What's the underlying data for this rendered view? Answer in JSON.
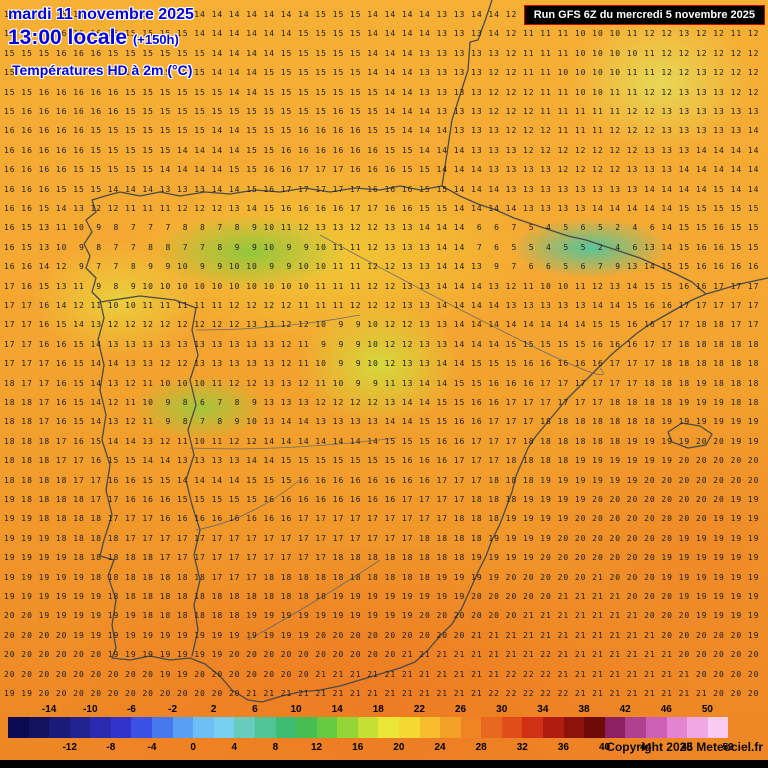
{
  "header": {
    "date_line": "mardi 11 novembre 2025",
    "time_line": "13:00 locale",
    "forecast_offset": "(+150h)",
    "variable_label": "Températures HD à 2m (°C)"
  },
  "run_info": {
    "label": "Run GFS 6Z du mercredi 5 novembre 2025"
  },
  "copyright": "Copyright 2025 Meteociel.fr",
  "colors": {
    "header_text": "#0000e0",
    "run_box_bg": "#000000",
    "run_box_border": "#d00000",
    "base_orange": "#f5a832",
    "warm_orange": "#ee8526",
    "cool_green": "#8ac83c",
    "cold_cyan": "#50c69e"
  },
  "scale": {
    "unit": "°C",
    "min": -18,
    "max": 52,
    "step": 2,
    "top_values": [
      -14,
      -10,
      -6,
      -2,
      2,
      6,
      10,
      14,
      18,
      22,
      26,
      30,
      34,
      38,
      42,
      46,
      50
    ],
    "bottom_values": [
      -12,
      -8,
      -4,
      0,
      4,
      8,
      12,
      16,
      20,
      24,
      28,
      32,
      36,
      40,
      44,
      48,
      52
    ],
    "colors": [
      "#0a0a50",
      "#12125e",
      "#1a1a77",
      "#222290",
      "#2a2aae",
      "#3232cc",
      "#3c50e6",
      "#4878ee",
      "#58a0f2",
      "#6cc0f6",
      "#78d0f0",
      "#68ccbc",
      "#50c494",
      "#3ebc72",
      "#46be52",
      "#66ca40",
      "#94d636",
      "#c4e034",
      "#ece63a",
      "#f6d834",
      "#f6be2e",
      "#f2a028",
      "#ee8424",
      "#e86820",
      "#e04c1a",
      "#d03014",
      "#b01c10",
      "#8e120c",
      "#6e0a08",
      "#8c2060",
      "#b04090",
      "#cc60b4",
      "#e284d0",
      "#f0a8e4",
      "#f8ccf2"
    ]
  },
  "grid": {
    "rows": [
      "15 15 15 15 16 15 15 15 15 15 15 14 14 14 14 14 14 14 15 15 15 14 14 14 14 13 13 14 14 12 12 11 11 11 10 10 11 11 13 13 12 12 11 11",
      "15 15 15 16 16 16 15 15 15 15 15 14 14 14 14 14 14 15 15 15 15 14 14 14 14 13 13 13 14 12 11 11 11 10 10 10 11 12 12 13 12 12 11 12",
      "15 15 15 16 16 16 15 15 15 15 15 15 14 14 14 14 15 15 15 15 15 14 14 14 13 13 13 13 13 12 11 11 11 10 10 10 10 11 12 12 12 12 12 12",
      "15 15 16 16 16 16 15 15 15 15 15 15 14 14 14 15 15 15 15 15 15 14 14 14 13 13 13 13 12 12 11 11 10 10 10 10 11 11 12 12 13 12 12 12",
      "15 15 16 16 16 16 16 15 15 15 15 15 15 14 14 15 15 15 15 15 15 15 14 14 13 13 13 13 12 12 12 11 11 10 10 11 11 12 12 13 13 13 12 12",
      "15 16 16 16 16 16 16 15 15 15 15 15 15 15 15 15 15 15 15 16 15 15 14 14 14 13 13 13 12 12 12 11 11 11 11 11 12 12 13 13 13 13 13 13",
      "16 16 16 16 16 15 15 15 15 15 15 15 14 14 15 15 15 16 16 16 16 15 15 14 14 14 13 13 13 12 12 12 11 11 11 12 12 12 13 13 13 13 13 14",
      "16 16 16 16 16 15 15 15 15 15 14 14 14 14 15 15 16 16 16 16 16 16 15 15 14 14 14 13 13 13 12 12 12 12 12 12 12 13 13 13 14 14 14 14",
      "16 16 16 16 15 15 15 15 15 14 14 14 14 15 15 16 16 17 17 17 16 16 16 15 15 14 14 14 13 13 13 13 12 12 12 12 13 13 13 14 14 14 14 14",
      "16 16 16 15 15 15 14 14 14 13 13 13 14 14 15 16 17 17 17 17 17 16 16 16 15 15 14 14 14 13 13 13 13 13 13 13 13 14 14 14 14 15 14 14",
      "16 16 15 14 13 12 12 11 11 11 12 12 12 13 14 15 16 16 16 16 17 17 16 16 15 15 14 14 14 14 13 13 13 13 14 14 14 14 14 15 15 15 15 15",
      "16 15 13 11 10  9  8  7  7  7  8  8  7  8  9 10 11 12 13 13 12 12 13 13 14 14 14  6  6  7  5  4  5  6  5  2  4  6 14 15 15 16 15 15",
      "16 15 13 10  9  8  7  7  8  8  7  7  8  9  9 10  9  9 10 11 11 12 13 13 13 14 14  7  6  5  5  4  5  5  2  4  6 13 14 15 16 16 15 15",
      "16 16 14 12  9  7  7  8  9  9 10  9  9 10 10  9  9 10 10 11 11 12 12 13 13 14 14 13  9  7  6  6  5  6  7  9 13 14 15 15 16 16 16 16",
      "17 16 15 13 11  9  8  9 10 10 10 10 10 10 10 10 10 10 11 11 11 12 12 13 13 14 14 14 13 12 11 10 10 11 12 13 14 15 15 16 16 17 17 17",
      "17 17 16 14 12 11 10 10 11 11 11 11 11 12 12 12 12 11 11 11 12 12 12 13 13 14 14 14 14 13 13 13 13 13 14 14 15 16 16 17 17 17 17 17",
      "17 17 16 15 14 13 12 12 12 12 12 12 12 12 13 13 12 12 10  9  9 10 12 12 13 13 14 14 14 14 14 14 14 14 15 15 16 16 17 17 18 18 17 17",
      "17 17 16 16 15 14 13 13 13 13 13 13 13 13 13 13 12 11  9  9  9 10 12 12 13 13 14 14 14 15 15 15 15 15 16 16 16 17 17 18 18 18 18 18",
      "17 17 17 16 15 14 14 13 13 12 12 13 13 13 13 13 12 11 10  9  9 10 12 13 13 14 14 15 15 15 16 16 16 16 16 17 17 17 18 18 18 18 18 18",
      "18 17 17 16 15 14 13 12 11 10 10 10 11 12 12 13 13 12 11 10  9  9 11 13 14 14 15 15 16 16 16 17 17 17 17 17 17 18 18 18 19 18 18 18",
      "18 18 17 16 15 14 12 11 10  9  8  6  7  8  9 13 13 13 12 12 12 12 13 14 14 15 15 16 16 17 17 17 17 17 17 18 18 18 18 19 19 19 18 18",
      "18 18 17 16 15 14 13 12 11  9  8  7  8  9 10 13 14 14 13 13 13 13 14 14 15 15 16 16 17 17 17 18 18 18 18 18 18 18 19 19 19 19 19 19",
      "18 18 18 17 16 15 14 14 13 12 11 10 11 12 12 14 14 14 14 14 14 14 15 15 15 16 16 17 17 17 18 18 18 18 18 18 19 19 19 19 20 20 19 19",
      "18 18 18 17 17 16 15 15 14 14 13 13 13 13 14 14 15 15 15 15 15 15 15 16 16 16 17 17 17 18 18 18 18 19 19 19 19 19 19 20 20 20 20 20",
      "18 18 18 18 17 17 16 16 15 15 14 14 14 14 15 15 15 16 16 16 16 16 16 16 16 17 17 17 18 18 18 19 19 19 19 19 19 20 20 20 20 20 20 20",
      "19 18 18 18 18 17 17 16 16 16 15 15 15 15 15 16 16 16 16 16 16 16 16 17 17 17 17 18 18 18 19 19 19 19 20 20 20 20 20 20 20 20 19 19",
      "19 19 18 18 18 18 17 17 17 16 16 16 16 16 16 16 16 17 17 17 17 17 17 17 17 17 18 18 18 19 19 19 19 20 20 20 20 20 20 20 20 19 19 19",
      "19 19 19 18 18 18 18 17 17 17 17 17 17 17 17 17 17 17 17 17 17 17 17 17 18 18 18 18 19 19 19 19 20 20 20 20 20 20 20 19 19 19 19 19",
      "19 19 19 19 18 18 18 18 18 17 17 17 17 17 17 17 17 17 17 18 18 18 18 18 18 18 18 19 19 19 19 20 20 20 20 20 20 20 19 19 19 19 19 19",
      "19 19 19 19 19 18 18 18 18 18 18 18 17 17 17 18 18 18 18 18 18 18 18 18 18 19 19 19 19 20 20 20 20 20 21 20 20 20 19 19 19 19 19 19",
      "19 19 19 19 19 19 18 18 18 18 18 18 18 18 18 18 18 18 18 19 19 19 19 19 19 19 19 20 20 20 20 20 21 21 21 21 20 20 20 19 19 19 19 19",
      "20 20 19 19 19 19 19 19 18 18 18 18 18 18 19 19 19 19 19 19 19 19 19 19 20 20 20 20 20 20 21 21 21 21 21 21 21 20 20 20 19 19 19 19",
      "20 20 20 20 19 19 19 19 19 19 19 19 19 19 19 19 19 19 20 20 20 20 20 20 20 20 20 21 21 21 21 21 21 21 21 21 21 21 20 20 20 20 20 19",
      "20 20 20 20 20 20 19 19 19 19 19 19 19 20 20 20 20 20 20 20 20 20 20 21 21 21 21 21 21 21 21 22 21 21 21 21 21 21 21 20 20 20 20 20",
      "20 20 20 20 20 20 20 20 20 19 19 20 20 20 20 20 20 20 21 21 21 21 21 21 21 21 21 21 21 22 22 22 21 21 21 21 21 21 21 21 20 20 20 20",
      "19 19 20 20 20 20 20 20 20 20 20 20 20 20 21 21 21 21 21 21 21 21 21 21 21 21 21 21 22 22 22 22 22 21 21 21 21 21 21 21 21 20 20 20"
    ]
  }
}
